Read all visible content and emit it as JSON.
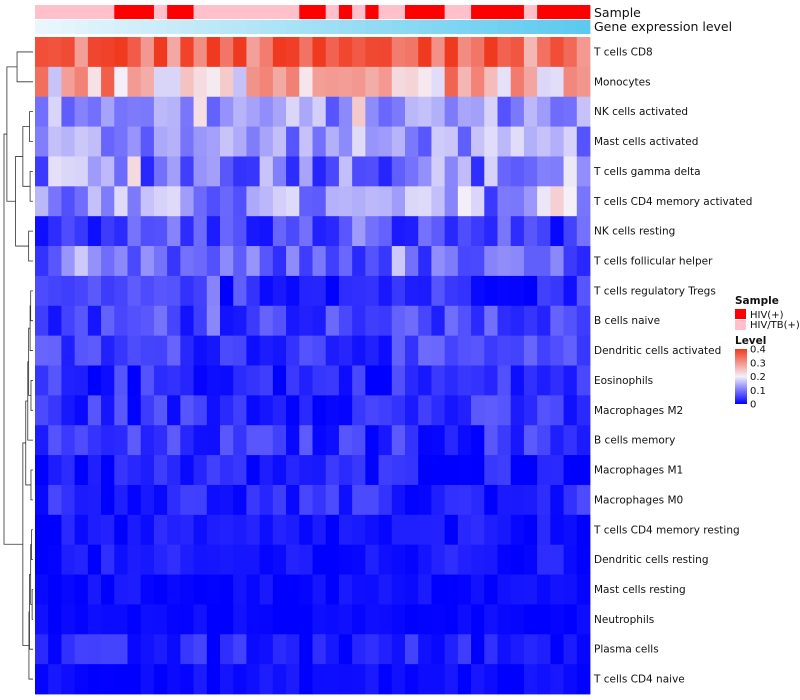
{
  "chart_data": {
    "type": "heatmap",
    "annotation_titles": [
      "Sample",
      "Gene expression level"
    ],
    "rows": [
      "T cells CD8",
      "Monocytes",
      "NK cells activated",
      "Mast cells activated",
      "T cells gamma delta",
      "T cells CD4 memory activated",
      "NK cells resting",
      "T cells follicular helper",
      "T cells regulatory  Tregs",
      "B cells naive",
      "Dendritic cells activated",
      "Eosinophils",
      "Macrophages M2",
      "B cells memory",
      "Macrophages M1",
      "Macrophages M0",
      "T cells CD4 memory resting",
      "Dendritic cells resting",
      "Mast cells resting",
      "Neutrophils",
      "Plasma cells",
      "T cells CD4 naive"
    ],
    "n_columns": 42,
    "sample_groups": [
      {
        "name": "HIV(+)",
        "color": "#ff0000"
      },
      {
        "name": "HIV/TB(+)",
        "color": "#ffc0cb"
      }
    ],
    "sample_pattern": "PPPPPPHHHPHHPPPPPPPPHHPHPHPPHHHPPHHHHPHHHH",
    "expression_gradient": {
      "from": "#eaf6fc",
      "to": "#5ccaf0"
    },
    "legend": {
      "sample_title": "Sample",
      "level_title": "Level",
      "ticks": [
        "0.4",
        "0.3",
        "0.2",
        "0.1",
        "0"
      ],
      "tick_values": [
        0.4,
        0.3,
        0.2,
        0.1,
        0.0
      ],
      "range": [
        0,
        0.4
      ],
      "colors": {
        "low": "#0000ff",
        "mid": "#f5f0f8",
        "high": "#f03a20"
      }
    },
    "row_means": [
      0.34,
      0.25,
      0.12,
      0.12,
      0.1,
      0.11,
      0.05,
      0.07,
      0.035,
      0.05,
      0.045,
      0.03,
      0.035,
      0.035,
      0.02,
      0.025,
      0.01,
      0.012,
      0.008,
      0.005,
      0.02,
      0.008
    ],
    "row_spread": [
      0.09,
      0.1,
      0.06,
      0.06,
      0.08,
      0.07,
      0.05,
      0.05,
      0.04,
      0.04,
      0.04,
      0.04,
      0.04,
      0.04,
      0.035,
      0.035,
      0.025,
      0.025,
      0.015,
      0.01,
      0.035,
      0.015
    ],
    "dendrogram": {
      "leaves": 22,
      "merges": [
        [
          0,
          1,
          0.55
        ],
        [
          2,
          3,
          0.12
        ],
        [
          4,
          5,
          0.1
        ],
        [
          -2,
          -3,
          0.35
        ],
        [
          6,
          7,
          0.15
        ],
        [
          -4,
          -5,
          0.6
        ],
        [
          -1,
          -6,
          0.9
        ],
        [
          8,
          9,
          0.08
        ],
        [
          -8,
          10,
          0.1
        ],
        [
          11,
          12,
          0.07
        ],
        [
          -9,
          -10,
          0.15
        ],
        [
          13,
          -11,
          0.18
        ],
        [
          14,
          15,
          0.07
        ],
        [
          -12,
          -13,
          0.25
        ],
        [
          16,
          17,
          0.05
        ],
        [
          18,
          19,
          0.03
        ],
        [
          -15,
          -16,
          0.08
        ],
        [
          -17,
          20,
          0.12
        ],
        [
          -18,
          21,
          0.14
        ],
        [
          -14,
          -19,
          0.35
        ],
        [
          -7,
          -20,
          1.0
        ]
      ]
    }
  }
}
